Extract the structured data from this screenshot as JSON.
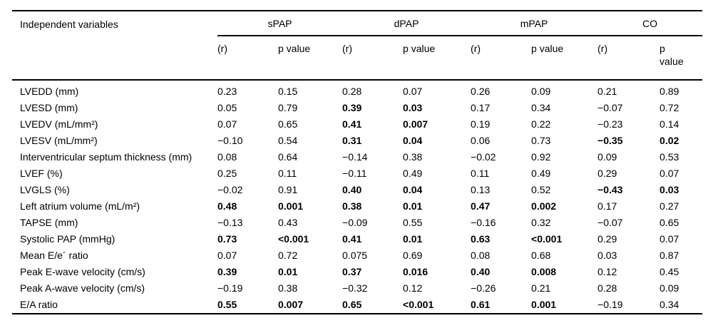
{
  "table": {
    "header": {
      "col1": "Independent variables",
      "groups": [
        "sPAP",
        "dPAP",
        "mPAP",
        "CO"
      ],
      "sub_r": "(r)",
      "sub_p": "p value"
    },
    "rows": [
      {
        "label": "LVEDD (mm)",
        "values": [
          "0.23",
          "0.15",
          "0.28",
          "0.07",
          "0.26",
          "0.09",
          "0.21",
          "0.89"
        ],
        "bold": [
          0,
          0,
          0,
          0,
          0,
          0,
          0,
          0
        ]
      },
      {
        "label": "LVESD (mm)",
        "values": [
          "0.05",
          "0.79",
          "0.39",
          "0.03",
          "0.17",
          "0.34",
          "−0.07",
          "0.72"
        ],
        "bold": [
          0,
          0,
          1,
          1,
          0,
          0,
          0,
          0
        ]
      },
      {
        "label": "LVEDV (mL/mm²)",
        "values": [
          "0.07",
          "0.65",
          "0.41",
          "0.007",
          "0.19",
          "0.22",
          "−0.23",
          "0.14"
        ],
        "bold": [
          0,
          0,
          1,
          1,
          0,
          0,
          0,
          0
        ]
      },
      {
        "label": "LVESV (mL/mm²)",
        "values": [
          "−0.10",
          "0.54",
          "0.31",
          "0.04",
          "0.06",
          "0.73",
          "−0.35",
          "0.02"
        ],
        "bold": [
          0,
          0,
          1,
          1,
          0,
          0,
          1,
          1
        ]
      },
      {
        "label": "Interventricular septum thickness (mm)",
        "values": [
          "0.08",
          "0.64",
          "−0.14",
          "0.38",
          "−0.02",
          "0.92",
          "0.09",
          "0.53"
        ],
        "bold": [
          0,
          0,
          0,
          0,
          0,
          0,
          0,
          0
        ]
      },
      {
        "label": "LVEF (%)",
        "values": [
          "0.25",
          "0.11",
          "−0.11",
          "0.49",
          "0.11",
          "0.49",
          "0.29",
          "0.07"
        ],
        "bold": [
          0,
          0,
          0,
          0,
          0,
          0,
          0,
          0
        ]
      },
      {
        "label": "LVGLS (%)",
        "values": [
          "−0.02",
          "0.91",
          "0.40",
          "0.04",
          "0.13",
          "0.52",
          "−0.43",
          "0.03"
        ],
        "bold": [
          0,
          0,
          1,
          1,
          0,
          0,
          1,
          1
        ]
      },
      {
        "label": "Left atrium volume (mL/m²)",
        "values": [
          "0.48",
          "0.001",
          "0.38",
          "0.01",
          "0.47",
          "0.002",
          "0.17",
          "0.27"
        ],
        "bold": [
          1,
          1,
          1,
          1,
          1,
          1,
          0,
          0
        ]
      },
      {
        "label": "TAPSE (mm)",
        "values": [
          "−0.13",
          "0.43",
          "−0.09",
          "0.55",
          "−0.16",
          "0.32",
          "−0.07",
          "0.65"
        ],
        "bold": [
          0,
          0,
          0,
          0,
          0,
          0,
          0,
          0
        ]
      },
      {
        "label": "Systolic PAP (mmHg)",
        "values": [
          "0.73",
          "<0.001",
          "0.41",
          "0.01",
          "0.63",
          "<0.001",
          "0.29",
          "0.07"
        ],
        "bold": [
          1,
          1,
          1,
          1,
          1,
          1,
          0,
          0
        ]
      },
      {
        "label": "Mean E/e´ ratio",
        "values": [
          "0.07",
          "0.72",
          "0.075",
          "0.69",
          "0.08",
          "0.68",
          "0.03",
          "0.87"
        ],
        "bold": [
          0,
          0,
          0,
          0,
          0,
          0,
          0,
          0
        ]
      },
      {
        "label": "Peak E-wave velocity (cm/s)",
        "values": [
          "0.39",
          "0.01",
          "0.37",
          "0.016",
          "0.40",
          "0.008",
          "0.12",
          "0.45"
        ],
        "bold": [
          1,
          1,
          1,
          1,
          1,
          1,
          0,
          0
        ]
      },
      {
        "label": "Peak A-wave velocity (cm/s)",
        "values": [
          "−0.19",
          "0.38",
          "−0.32",
          "0.12",
          "−0.26",
          "0.21",
          "0.28",
          "0.09"
        ],
        "bold": [
          0,
          0,
          0,
          0,
          0,
          0,
          0,
          0
        ]
      },
      {
        "label": "E/A ratio",
        "values": [
          "0.55",
          "0.007",
          "0.65",
          "<0.001",
          "0.61",
          "0.001",
          "−0.19",
          "0.34"
        ],
        "bold": [
          1,
          1,
          1,
          1,
          1,
          1,
          0,
          0
        ]
      }
    ]
  }
}
